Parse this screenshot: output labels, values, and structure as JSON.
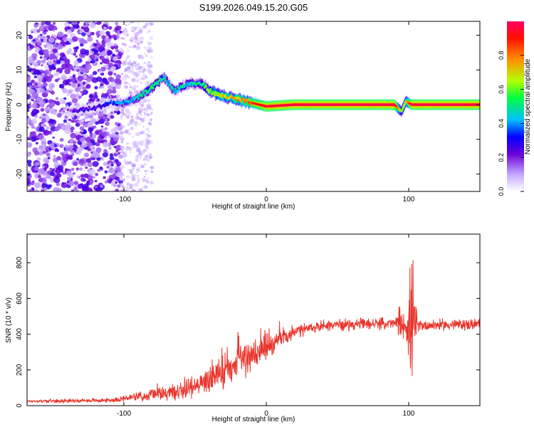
{
  "title": "S199.2026.049.15.20.G05",
  "chart_data": [
    {
      "type": "heatmap",
      "title": "",
      "xlabel": "Height of straight line (km)",
      "ylabel": "Frequency (Hz)",
      "xlim": [
        -168,
        150
      ],
      "ylim": [
        -25,
        24
      ],
      "xticks": [
        -100,
        0,
        100
      ],
      "xtick_labels": [
        "-100",
        "0",
        "100"
      ],
      "yticks": [
        -20,
        -10,
        0,
        10,
        20
      ],
      "ytick_labels": [
        "-20",
        "-10",
        "0",
        "10",
        "20"
      ],
      "ridge": {
        "x": [
          -168,
          -140,
          -130,
          -120,
          -110,
          -100,
          -90,
          -80,
          -72,
          -70,
          -65,
          -55,
          -45,
          -40,
          -35,
          -25,
          -15,
          -5,
          0,
          20,
          50,
          90,
          95,
          98,
          102,
          150
        ],
        "freq": [
          -1,
          -2,
          -1.5,
          -1,
          0.5,
          0.5,
          2,
          5,
          8,
          7,
          4,
          6,
          6,
          4,
          3,
          2,
          1,
          0,
          -0.5,
          0,
          0,
          0,
          -2,
          1,
          0,
          0
        ],
        "amplitude": [
          0.2,
          0.2,
          0.35,
          0.3,
          0.4,
          0.5,
          0.55,
          0.6,
          0.55,
          0.5,
          0.55,
          0.55,
          0.6,
          0.7,
          0.75,
          0.8,
          0.85,
          0.9,
          0.95,
          0.97,
          0.97,
          0.97,
          0.6,
          0.7,
          0.97,
          0.97
        ]
      },
      "colorbar": {
        "label": "Normalized spectral amplitude",
        "range": [
          0,
          1
        ],
        "ticks": [
          0.0,
          0.2,
          0.4,
          0.6,
          0.8
        ],
        "tick_labels": [
          "0.0",
          "0.2",
          "0.4",
          "0.6",
          "0.8"
        ],
        "colors": [
          "#ffffff",
          "#a070ff",
          "#6000d0",
          "#0000ff",
          "#00c0ff",
          "#00ff60",
          "#c0ff00",
          "#ff8000",
          "#ff0000",
          "#ff0060"
        ]
      }
    },
    {
      "type": "line",
      "title": "",
      "xlabel": "Height of straight line (km)",
      "ylabel": "SNR (10 * v/v)",
      "xlim": [
        -168,
        150
      ],
      "ylim": [
        0,
        960
      ],
      "xticks": [
        -100,
        0,
        100
      ],
      "xtick_labels": [
        "-100",
        "0",
        "100"
      ],
      "yticks": [
        0,
        200,
        400,
        600,
        800
      ],
      "ytick_labels": [
        "0",
        "200",
        "400",
        "600",
        "800"
      ],
      "series": [
        {
          "name": "SNR",
          "color": "#e8332a",
          "trend_x": [
            -168,
            -110,
            -90,
            -60,
            -40,
            -20,
            0,
            20,
            40,
            60,
            90,
            100,
            105,
            150
          ],
          "trend_y": [
            25,
            30,
            50,
            80,
            140,
            230,
            330,
            410,
            450,
            455,
            460,
            450,
            450,
            455
          ],
          "noise_y": [
            10,
            15,
            30,
            60,
            100,
            120,
            90,
            50,
            40,
            40,
            40,
            300,
            40,
            40
          ]
        }
      ]
    }
  ]
}
